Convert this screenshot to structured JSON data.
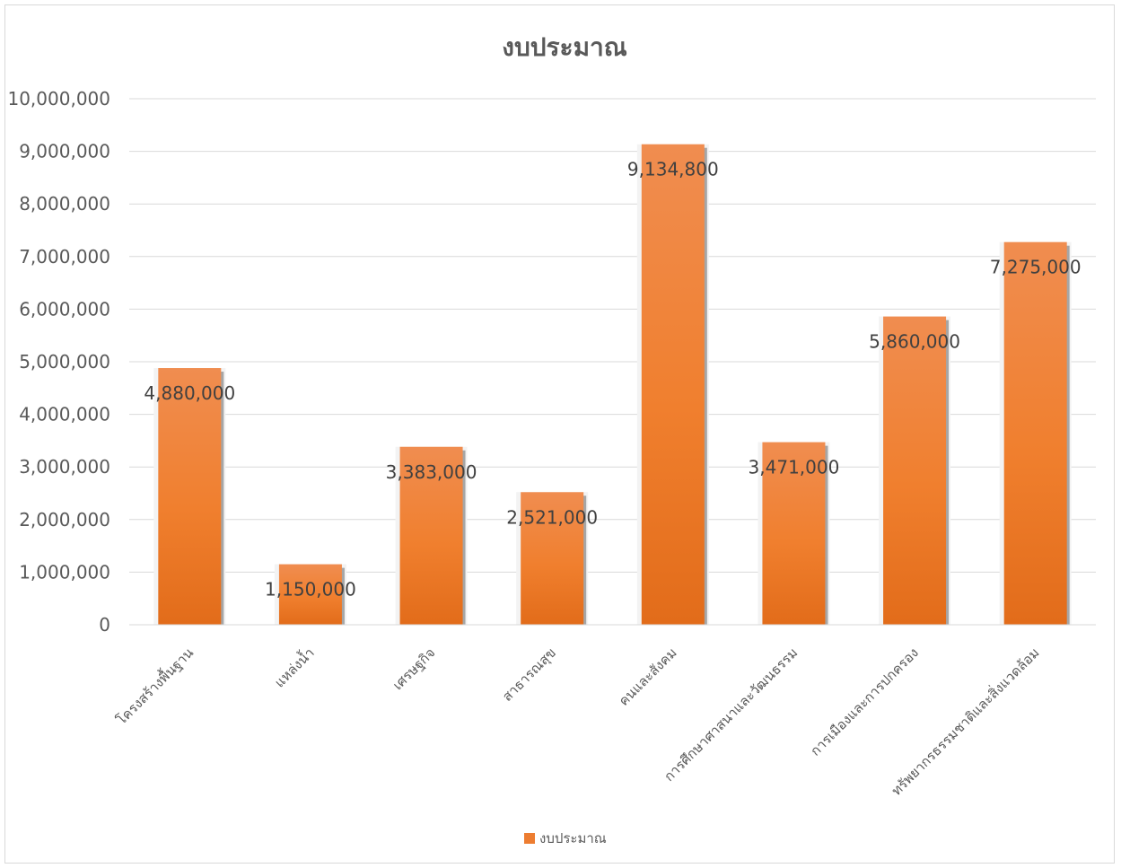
{
  "chart_data": {
    "type": "bar",
    "title": "งบประมาณ",
    "categories": [
      "โครงสร้างพื้นฐาน",
      "แหล่งน้ำ",
      "เศรษฐกิจ",
      "สาธารณสุข",
      "คนและสังคม",
      "การศึกษาศาสนาและวัฒนธรรม",
      "การเมืองและการปกครอง",
      "ทรัพยากรธรรมชาติและสิ่งแวดล้อม"
    ],
    "series": [
      {
        "name": "งบประมาณ",
        "values": [
          4880000,
          1150000,
          3383000,
          2521000,
          9134800,
          3471000,
          5860000,
          7275000
        ]
      }
    ],
    "data_labels": [
      "4,880,000",
      "1,150,000",
      "3,383,000",
      "2,521,000",
      "9,134,800",
      "3,471,000",
      "5,860,000",
      "7,275,000"
    ],
    "y_ticks": [
      0,
      1000000,
      2000000,
      3000000,
      4000000,
      5000000,
      6000000,
      7000000,
      8000000,
      9000000,
      10000000
    ],
    "y_tick_labels": [
      "0",
      "1,000,000",
      "2,000,000",
      "3,000,000",
      "4,000,000",
      "5,000,000",
      "6,000,000",
      "7,000,000",
      "8,000,000",
      "9,000,000",
      "10,000,000"
    ],
    "ylim": [
      0,
      10000000
    ],
    "xlabel": "",
    "ylabel": "",
    "grid": true,
    "legend_position": "bottom",
    "bar_color": "#ed7d31"
  }
}
